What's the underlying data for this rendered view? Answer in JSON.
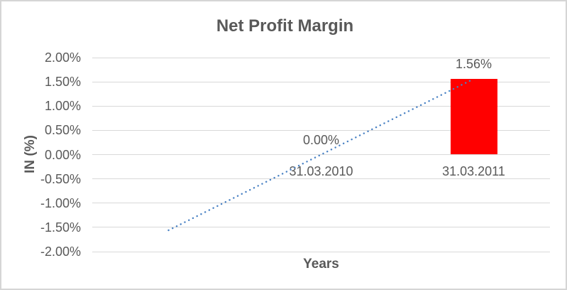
{
  "frame": {
    "background": "#FFFFFF",
    "border_color": "#D5D5D5"
  },
  "colors": {
    "text": "#595959",
    "gridline": "#D9D9D9"
  },
  "chart_data": {
    "type": "bar",
    "title": "Net Profit Margin",
    "xlabel": "Years",
    "ylabel": "IN (%)",
    "categories": [
      "31.03.2010",
      "31.03.2011"
    ],
    "values": [
      0.0,
      1.56
    ],
    "data_labels": [
      "0.00%",
      "1.56%"
    ],
    "series_color": "#FF0000",
    "ylim": [
      -2.0,
      2.0
    ],
    "yticks": [
      {
        "v": 2.0,
        "label": "2.00%"
      },
      {
        "v": 1.5,
        "label": "1.50%"
      },
      {
        "v": 1.0,
        "label": "1.00%"
      },
      {
        "v": 0.5,
        "label": "0.50%"
      },
      {
        "v": 0.0,
        "label": "0.00%"
      },
      {
        "v": -0.5,
        "label": "-0.50%"
      },
      {
        "v": -1.0,
        "label": "-1.00%"
      },
      {
        "v": -1.5,
        "label": "-1.50%"
      },
      {
        "v": -2.0,
        "label": "-2.00%"
      }
    ],
    "grid": true,
    "legend": "none",
    "category_slots": 3,
    "category_slot_indices": [
      1,
      2
    ],
    "trendline": {
      "style": "dotted",
      "color": "#4A82C4",
      "start": {
        "slot": 0,
        "value": -1.56
      },
      "end": {
        "slot": 2,
        "value": 1.56
      }
    }
  }
}
